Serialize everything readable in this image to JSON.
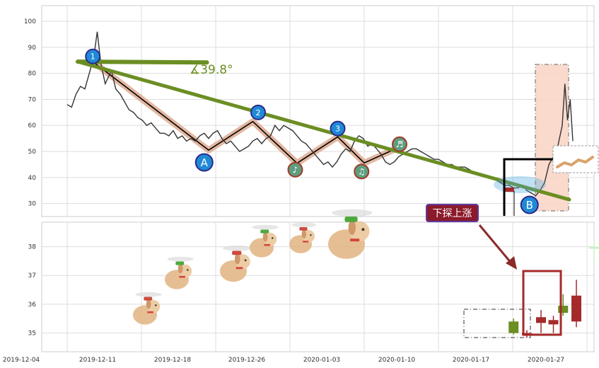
{
  "chart_data": [
    {
      "type": "line",
      "panel": "price",
      "y_ticks": [
        30,
        40,
        50,
        60,
        70,
        80,
        90,
        100
      ],
      "ylim": [
        25,
        106
      ],
      "grid": true,
      "series": [
        {
          "values": [
            [
              0.0,
              68
            ],
            [
              0.5,
              67
            ],
            [
              1.0,
              72
            ],
            [
              1.5,
              75
            ],
            [
              2.0,
              74
            ],
            [
              2.5,
              80
            ],
            [
              3.0,
              86
            ],
            [
              3.4,
              96
            ],
            [
              3.8,
              84
            ],
            [
              4.3,
              76
            ],
            [
              5.0,
              81
            ],
            [
              5.5,
              74
            ],
            [
              6.0,
              72
            ],
            [
              6.5,
              69
            ],
            [
              7.0,
              66
            ],
            [
              7.5,
              65
            ],
            [
              8.0,
              63
            ],
            [
              8.5,
              62
            ],
            [
              9.0,
              60
            ],
            [
              9.5,
              61
            ],
            [
              10.0,
              59
            ],
            [
              10.5,
              57
            ],
            [
              11.0,
              57
            ],
            [
              11.5,
              56
            ],
            [
              12.0,
              58
            ],
            [
              12.5,
              55
            ],
            [
              13.0,
              56
            ],
            [
              13.5,
              54
            ],
            [
              14.0,
              55
            ],
            [
              14.5,
              54
            ],
            [
              15.0,
              56
            ],
            [
              15.5,
              57
            ],
            [
              16.0,
              55
            ],
            [
              16.5,
              57
            ],
            [
              17.0,
              58
            ],
            [
              17.5,
              55
            ],
            [
              18.0,
              53
            ],
            [
              18.5,
              54
            ],
            [
              19.0,
              52
            ],
            [
              19.5,
              50
            ],
            [
              20.0,
              51
            ],
            [
              20.5,
              52
            ],
            [
              21.0,
              54
            ],
            [
              21.5,
              55
            ],
            [
              22.0,
              53
            ],
            [
              22.5,
              55
            ],
            [
              23.0,
              56
            ],
            [
              23.5,
              60
            ],
            [
              24.0,
              58
            ],
            [
              24.5,
              60
            ],
            [
              25.0,
              59
            ],
            [
              25.5,
              58
            ],
            [
              26.0,
              56
            ],
            [
              26.5,
              54
            ],
            [
              27.0,
              53
            ],
            [
              27.5,
              51
            ],
            [
              28.0,
              49
            ],
            [
              28.5,
              47
            ],
            [
              29.0,
              45
            ],
            [
              29.5,
              46
            ],
            [
              30.0,
              44
            ],
            [
              30.5,
              46
            ],
            [
              31.0,
              49
            ],
            [
              31.5,
              51
            ],
            [
              32.0,
              50
            ],
            [
              32.5,
              54
            ],
            [
              33.0,
              56
            ],
            [
              33.5,
              55
            ],
            [
              34.0,
              52
            ],
            [
              34.5,
              53
            ],
            [
              35.0,
              51
            ],
            [
              35.5,
              49
            ],
            [
              36.0,
              46
            ],
            [
              36.5,
              45
            ],
            [
              37.0,
              46
            ],
            [
              37.5,
              48
            ],
            [
              38.0,
              49
            ],
            [
              38.5,
              50
            ],
            [
              39.0,
              51
            ],
            [
              39.5,
              51
            ],
            [
              40.0,
              50
            ],
            [
              40.5,
              49
            ],
            [
              41.0,
              48
            ],
            [
              41.5,
              47
            ],
            [
              42.0,
              47
            ],
            [
              42.5,
              46
            ],
            [
              43.0,
              45
            ],
            [
              43.5,
              45
            ],
            [
              44.0,
              44
            ],
            [
              44.5,
              44
            ],
            [
              45.0,
              44
            ],
            [
              45.5,
              43
            ],
            [
              46.0,
              42
            ],
            [
              46.5,
              41
            ],
            [
              47.0,
              41
            ],
            [
              47.5,
              40
            ],
            [
              48.0,
              40
            ],
            [
              48.5,
              39
            ],
            [
              49.0,
              38
            ],
            [
              49.5,
              37
            ],
            [
              50.0,
              37
            ],
            [
              50.5,
              36
            ],
            [
              51.0,
              36
            ],
            [
              51.5,
              37
            ],
            [
              52.0,
              35
            ],
            [
              52.5,
              34
            ],
            [
              53.0,
              33
            ],
            [
              53.5,
              35
            ],
            [
              54.0,
              38
            ],
            [
              54.5,
              45
            ],
            [
              55.0,
              48
            ],
            [
              55.5,
              52
            ],
            [
              56.0,
              60
            ],
            [
              56.3,
              76
            ],
            [
              56.6,
              62
            ],
            [
              56.9,
              70
            ],
            [
              57.2,
              54
            ]
          ]
        }
      ]
    },
    {
      "type": "bar",
      "panel": "candles",
      "y_ticks": [
        35,
        36,
        37,
        38
      ],
      "ylim": [
        34.35,
        38.85
      ],
      "grid": true,
      "x_tick_labels": [
        "2019-12-04",
        "2019-12-11",
        "2019-12-18",
        "2019-12-26",
        "2020-01-03",
        "2020-01-10",
        "2020-01-17",
        "2020-01-27"
      ],
      "candles": [
        {
          "x": 50.5,
          "open": 35.4,
          "close": 35.0,
          "high": 35.5,
          "low": 34.95,
          "color": "#6b8e23"
        },
        {
          "x": 52.0,
          "open": 35.0,
          "close": 34.95,
          "high": 35.1,
          "low": 34.85,
          "color": "#a52a2a"
        },
        {
          "x": 53.6,
          "open": 35.35,
          "close": 35.55,
          "high": 35.8,
          "low": 35.0,
          "color": "#a52a2a"
        },
        {
          "x": 55.0,
          "open": 35.3,
          "close": 35.45,
          "high": 35.6,
          "low": 35.0,
          "color": "#a52a2a"
        },
        {
          "x": 56.1,
          "open": 35.7,
          "close": 35.95,
          "high": 36.35,
          "low": 35.6,
          "color": "#6b8e23"
        },
        {
          "x": 57.6,
          "open": 35.4,
          "close": 36.3,
          "high": 36.85,
          "low": 35.2,
          "color": "#a52a2a"
        },
        {
          "x": 59.6,
          "open": 37.95,
          "close": 38.0,
          "high": 38.15,
          "low": 37.45,
          "color": "#c8f0c8"
        }
      ]
    }
  ],
  "annotations": {
    "angle_label": "∡39.8°",
    "markers": [
      "1",
      "2",
      "3"
    ],
    "points": [
      "A",
      "B"
    ],
    "note_symbols": [
      "♪",
      "♫",
      "♬"
    ],
    "callout": "下探上涨"
  },
  "colors": {
    "price_line": "#333333",
    "trend_line": "#6b8e23",
    "zigzag": "#000000",
    "zigzag_shadow": "#deaa90",
    "marker_fill": "#1f8ad6",
    "marker_border": "#2a2a8a",
    "note_fill": "#5e9e7e",
    "note_border": "#a03a2a",
    "callout_bg": "#8b1a2b",
    "callout_border": "#5e3aa0",
    "arrow": "#8b2a2a",
    "highlight_box": "#a52a2a",
    "pink_zone": "#fad6c8"
  }
}
